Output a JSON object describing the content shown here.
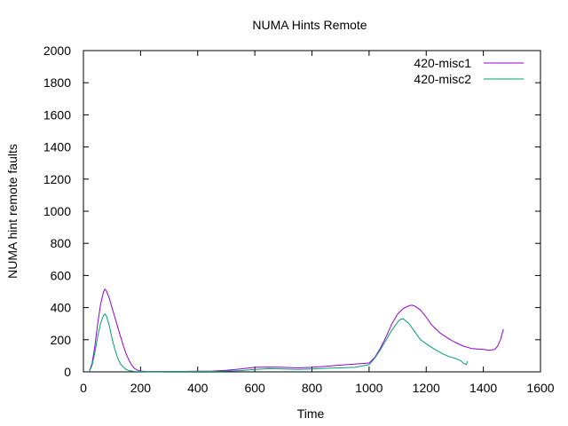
{
  "chart_data": {
    "type": "line",
    "title": "NUMA Hints Remote",
    "xlabel": "Time",
    "ylabel": "NUMA hint remote faults",
    "xlim": [
      0,
      1600
    ],
    "ylim": [
      0,
      2000
    ],
    "xticks": [
      0,
      200,
      400,
      600,
      800,
      1000,
      1200,
      1400,
      1600
    ],
    "yticks": [
      0,
      200,
      400,
      600,
      800,
      1000,
      1200,
      1400,
      1600,
      1800,
      2000
    ],
    "grid": false,
    "legend_position": "top-right",
    "series": [
      {
        "name": "420-misc1",
        "color": "#9400d3",
        "x": [
          20,
          30,
          40,
          50,
          60,
          70,
          75,
          80,
          90,
          100,
          110,
          120,
          130,
          140,
          150,
          160,
          170,
          180,
          190,
          200,
          220,
          250,
          300,
          350,
          400,
          450,
          500,
          550,
          600,
          650,
          700,
          750,
          800,
          850,
          900,
          950,
          1000,
          1020,
          1040,
          1060,
          1080,
          1100,
          1120,
          1140,
          1150,
          1160,
          1180,
          1200,
          1220,
          1250,
          1280,
          1300,
          1330,
          1360,
          1400,
          1420,
          1440,
          1450,
          1460,
          1470
        ],
        "y": [
          0,
          50,
          160,
          300,
          420,
          495,
          515,
          505,
          460,
          400,
          340,
          280,
          220,
          160,
          110,
          70,
          40,
          20,
          10,
          5,
          2,
          2,
          3,
          3,
          4,
          5,
          10,
          18,
          28,
          30,
          28,
          25,
          28,
          35,
          42,
          48,
          55,
          90,
          150,
          220,
          300,
          360,
          395,
          412,
          415,
          410,
          385,
          340,
          290,
          240,
          205,
          185,
          160,
          145,
          140,
          135,
          140,
          160,
          200,
          265
        ]
      },
      {
        "name": "420-misc2",
        "color": "#009e73",
        "x": [
          20,
          30,
          40,
          50,
          60,
          70,
          75,
          80,
          90,
          100,
          110,
          120,
          130,
          140,
          150,
          160,
          170,
          180,
          200,
          220,
          250,
          300,
          350,
          400,
          450,
          500,
          550,
          600,
          650,
          700,
          750,
          800,
          850,
          900,
          950,
          1000,
          1020,
          1040,
          1060,
          1080,
          1100,
          1110,
          1120,
          1140,
          1160,
          1180,
          1200,
          1230,
          1260,
          1280,
          1300,
          1320,
          1330,
          1340,
          1345
        ],
        "y": [
          0,
          40,
          120,
          220,
          300,
          350,
          360,
          350,
          290,
          210,
          140,
          85,
          50,
          28,
          15,
          8,
          5,
          3,
          2,
          1,
          1,
          2,
          2,
          3,
          3,
          5,
          8,
          15,
          20,
          18,
          15,
          18,
          22,
          25,
          28,
          45,
          85,
          140,
          200,
          260,
          310,
          328,
          330,
          300,
          250,
          200,
          175,
          140,
          110,
          95,
          85,
          70,
          55,
          45,
          65
        ]
      }
    ]
  }
}
